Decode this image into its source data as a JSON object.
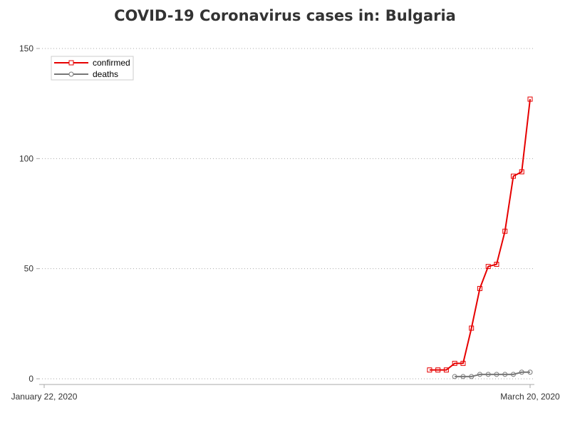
{
  "chart_data": {
    "type": "line",
    "title": "COVID-19 Coronavirus cases in: Bulgaria",
    "xlabel": "",
    "ylabel": "",
    "x_range": [
      "2020-01-22",
      "2020-03-20"
    ],
    "x_tick_labels": [
      "January 22, 2020",
      "March 20, 2020"
    ],
    "ylim": [
      0,
      150
    ],
    "y_ticks": [
      0,
      50,
      100,
      150
    ],
    "grid": "horizontal dotted",
    "legend_position": "top-left",
    "series": [
      {
        "name": "confirmed",
        "color": "#e60000",
        "marker": "square",
        "points": [
          [
            "2020-03-08",
            4
          ],
          [
            "2020-03-09",
            4
          ],
          [
            "2020-03-10",
            4
          ],
          [
            "2020-03-11",
            7
          ],
          [
            "2020-03-12",
            7
          ],
          [
            "2020-03-13",
            23
          ],
          [
            "2020-03-14",
            41
          ],
          [
            "2020-03-15",
            51
          ],
          [
            "2020-03-16",
            52
          ],
          [
            "2020-03-17",
            67
          ],
          [
            "2020-03-18",
            92
          ],
          [
            "2020-03-19",
            94
          ],
          [
            "2020-03-20",
            127
          ]
        ]
      },
      {
        "name": "deaths",
        "color": "#777777",
        "marker": "circle",
        "points": [
          [
            "2020-03-11",
            1
          ],
          [
            "2020-03-12",
            1
          ],
          [
            "2020-03-13",
            1
          ],
          [
            "2020-03-14",
            2
          ],
          [
            "2020-03-15",
            2
          ],
          [
            "2020-03-16",
            2
          ],
          [
            "2020-03-17",
            2
          ],
          [
            "2020-03-18",
            2
          ],
          [
            "2020-03-19",
            3
          ],
          [
            "2020-03-20",
            3
          ]
        ]
      }
    ]
  }
}
